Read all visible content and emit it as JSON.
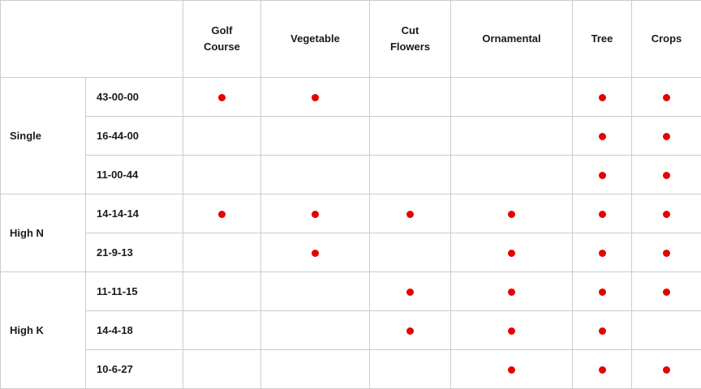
{
  "chart_data": {
    "type": "table",
    "columns": [
      "Golf\nCourse",
      "Vegetable",
      "Cut\nFlowers",
      "Ornamental",
      "Tree",
      "Crops"
    ],
    "row_groups": [
      {
        "label": "Single",
        "rows": [
          {
            "formula": "43-00-00",
            "dots": [
              1,
              1,
              0,
              0,
              1,
              1
            ]
          },
          {
            "formula": "16-44-00",
            "dots": [
              0,
              0,
              0,
              0,
              1,
              1
            ]
          },
          {
            "formula": "11-00-44",
            "dots": [
              0,
              0,
              0,
              0,
              1,
              1
            ]
          }
        ]
      },
      {
        "label": "High N",
        "rows": [
          {
            "formula": "14-14-14",
            "dots": [
              1,
              1,
              1,
              1,
              1,
              1
            ]
          },
          {
            "formula": "21-9-13",
            "dots": [
              0,
              1,
              0,
              1,
              1,
              1
            ]
          }
        ]
      },
      {
        "label": "High K",
        "rows": [
          {
            "formula": "11-11-15",
            "dots": [
              0,
              0,
              1,
              1,
              1,
              1
            ]
          },
          {
            "formula": "14-4-18",
            "dots": [
              0,
              0,
              1,
              1,
              1,
              0
            ]
          },
          {
            "formula": "10-6-27",
            "dots": [
              0,
              0,
              0,
              1,
              1,
              1
            ]
          }
        ]
      }
    ],
    "dot_icon": "filled-circle-icon",
    "dot_color": "#e60000",
    "border_color": "#cccccc",
    "text_color": "#1a1a1a",
    "grid": true,
    "legend_position": "none"
  }
}
